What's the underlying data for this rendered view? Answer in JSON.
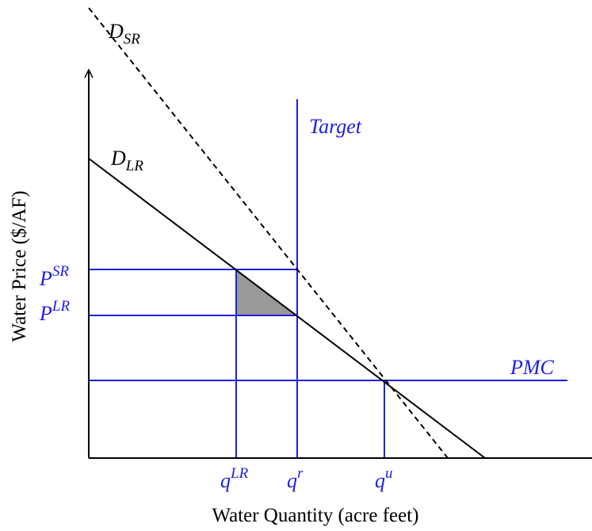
{
  "axes": {
    "x_label": "Water Quantity (acre feet)",
    "y_label": "Water Price ($/AF)"
  },
  "curves": [
    {
      "symbol": "D",
      "subscript": "SR"
    },
    {
      "symbol": "D",
      "subscript": "LR"
    }
  ],
  "lines": {
    "target": "Target",
    "pmc": "PMC"
  },
  "prices": [
    {
      "symbol": "P",
      "superscript": "SR"
    },
    {
      "symbol": "P",
      "superscript": "LR"
    }
  ],
  "quantities": [
    {
      "symbol": "q",
      "superscript": "LR"
    },
    {
      "symbol": "q",
      "superscript": "r"
    },
    {
      "symbol": "q",
      "superscript": "u"
    }
  ]
}
